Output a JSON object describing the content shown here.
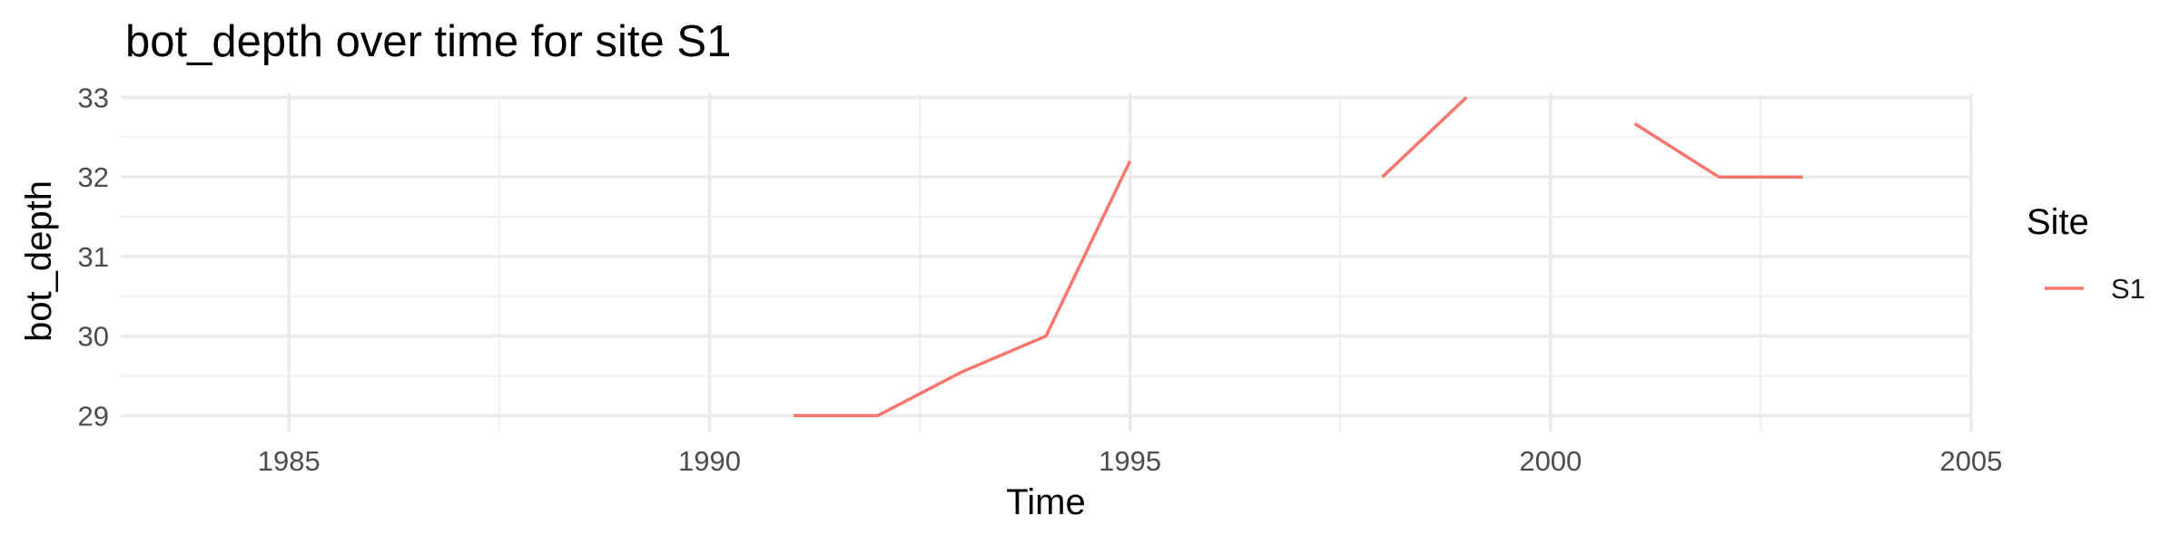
{
  "chart_data": {
    "type": "line",
    "title": "bot_depth over time for site S1",
    "xlabel": "Time",
    "ylabel": "bot_depth",
    "xlim": [
      1983,
      2005
    ],
    "ylim": [
      28.8,
      33.05
    ],
    "x_ticks": [
      1985,
      1990,
      1995,
      2000,
      2005
    ],
    "x_tick_labels": [
      "1985",
      "1990",
      "1995",
      "2000",
      "2005"
    ],
    "y_ticks": [
      29,
      30,
      31,
      32,
      33
    ],
    "y_tick_labels": [
      "29",
      "30",
      "31",
      "32",
      "33"
    ],
    "grid": true,
    "legend_title": "Site",
    "legend_position": "right",
    "series": [
      {
        "name": "S1",
        "color": "#F8766D",
        "segments": [
          [
            [
              1991,
              29
            ],
            [
              1992,
              29
            ],
            [
              1993,
              29.55
            ],
            [
              1994,
              30
            ],
            [
              1995,
              32.2
            ]
          ],
          [
            [
              1998,
              32
            ],
            [
              1999,
              33
            ]
          ],
          [
            [
              2001,
              32.67
            ],
            [
              2002,
              32
            ],
            [
              2003,
              32
            ]
          ]
        ]
      }
    ]
  }
}
